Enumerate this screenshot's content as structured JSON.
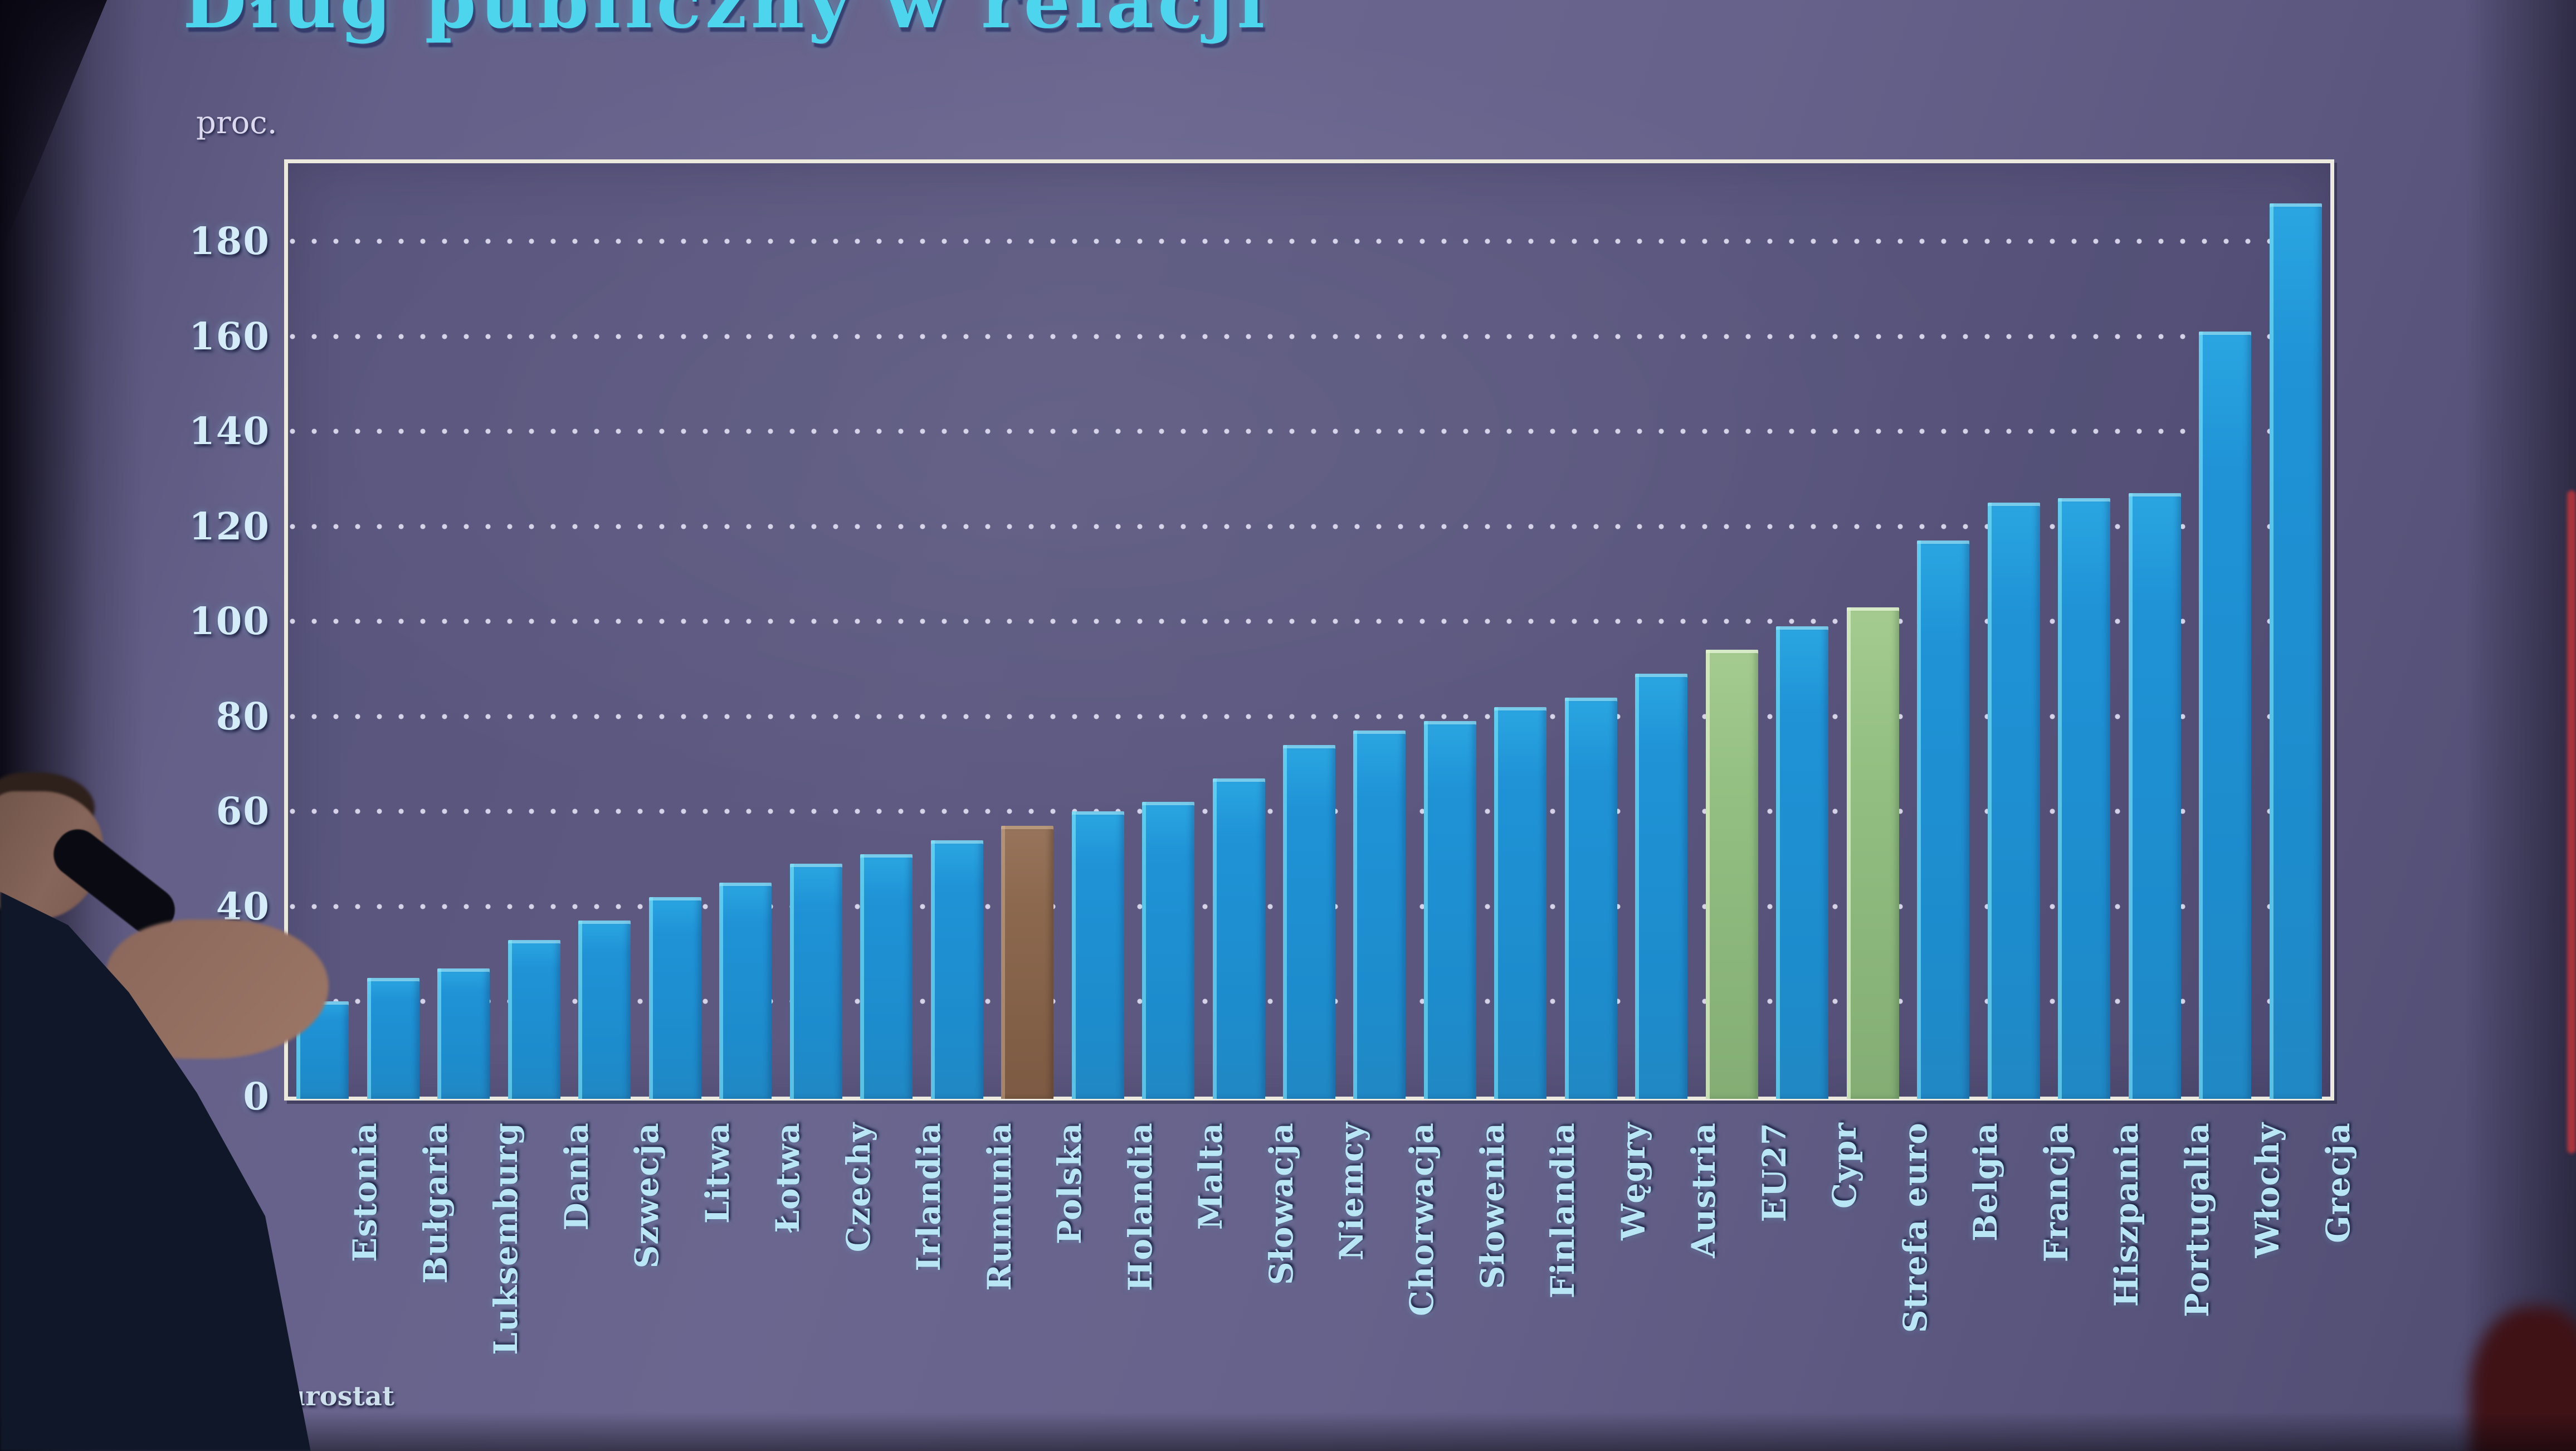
{
  "slide": {
    "title": "Dług publiczny w relacji",
    "y_axis_unit": "proc.",
    "source": "Źródło: Eurostat"
  },
  "chart_data": {
    "type": "bar",
    "title": "Dług publiczny w relacji",
    "ylabel": "proc.",
    "xlabel": "",
    "ylim": [
      0,
      197
    ],
    "yticks": [
      0,
      20,
      40,
      60,
      80,
      100,
      120,
      140,
      160,
      180
    ],
    "grid": "dotted horizontal lines every 20",
    "legend": null,
    "categories": [
      "Estonia",
      "Bułgaria",
      "Luksemburg",
      "Dania",
      "Szwecja",
      "Litwa",
      "Łotwa",
      "Czechy",
      "Irlandia",
      "Rumunia",
      "Polska",
      "Holandia",
      "Malta",
      "Słowacja",
      "Niemcy",
      "Chorwacja",
      "Słowenia",
      "Finlandia",
      "Węgry",
      "Austria",
      "EU27",
      "Cypr",
      "Strefa euro",
      "Belgia",
      "Francja",
      "Hiszpania",
      "Portugalia",
      "Włochy",
      "Grecja"
    ],
    "values": [
      20,
      25,
      27,
      33,
      37,
      42,
      45,
      49,
      51,
      54,
      57,
      60,
      62,
      67,
      74,
      77,
      79,
      82,
      84,
      89,
      94,
      99,
      103,
      117,
      125,
      126,
      127,
      161,
      188
    ],
    "bar_color_default": "#1f93d6",
    "highlighted_bars": {
      "Polska": "#8b684e",
      "EU27": "#94c083",
      "Strefa euro": "#94c083"
    }
  },
  "colors": {
    "slide_background": "#66628b",
    "title_text": "#4cd5ec",
    "axis_frame": "#eceadf",
    "tick_text": "#d3ecf7",
    "category_text": "#b9e6f4",
    "red_edge_streak": "#a8343c"
  },
  "overlay_icons": {
    "speaker": "speaker-silhouette",
    "microphone": "microphone-silhouette"
  }
}
